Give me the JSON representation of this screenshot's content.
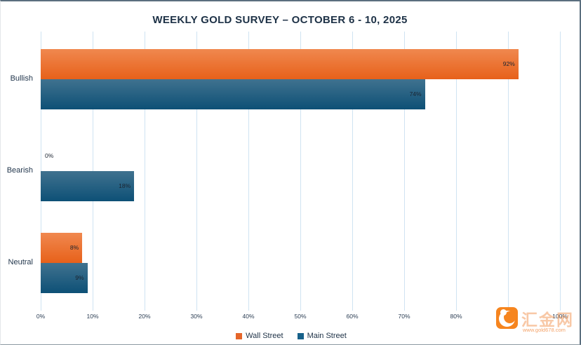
{
  "chart_data": {
    "type": "bar",
    "orientation": "horizontal",
    "title": "WEEKLY GOLD SURVEY – OCTOBER 6 - 10, 2025",
    "categories": [
      "Bullish",
      "Bearish",
      "Neutral"
    ],
    "series": [
      {
        "name": "Wall Street",
        "values": [
          92,
          0,
          8
        ],
        "color_top": "#F0884F",
        "color_bottom": "#E7611A",
        "legend_color": "#E5662A"
      },
      {
        "name": "Main Street",
        "values": [
          74,
          18,
          9
        ],
        "color_top": "#40728F",
        "color_bottom": "#0D5076",
        "legend_color": "#17618A"
      }
    ],
    "value_labels": [
      [
        "92%",
        "0%",
        "8%"
      ],
      [
        "74%",
        "18%",
        "9%"
      ]
    ],
    "x_ticks": [
      "0%",
      "10%",
      "20%",
      "30%",
      "40%",
      "50%",
      "60%",
      "70%",
      "80%",
      "90%",
      "100%"
    ],
    "xlim": [
      0,
      100
    ],
    "grid": true,
    "gridline_color": "#CFE3F2",
    "legend_position": "bottom",
    "title_color": "#1D3146"
  },
  "watermark": {
    "brand": "汇金网",
    "url": "www.gold678.com",
    "logo_color": "#F6851F"
  }
}
